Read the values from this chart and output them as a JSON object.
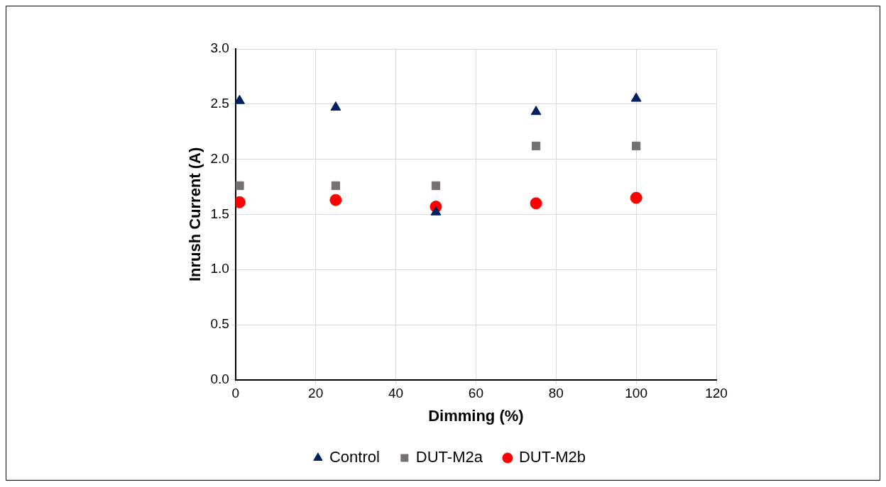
{
  "chart_data": {
    "type": "scatter",
    "xlabel": "Dimming (%)",
    "ylabel": "Inrush Current (A)",
    "x": [
      1,
      25,
      50,
      75,
      100
    ],
    "series": [
      {
        "name": "Control",
        "color": "#002060",
        "marker": "triangle",
        "values": [
          2.53,
          2.47,
          1.52,
          2.43,
          2.55
        ]
      },
      {
        "name": "DUT-M2a",
        "color": "#767171",
        "marker": "square",
        "values": [
          1.76,
          1.76,
          1.76,
          2.12,
          2.12
        ]
      },
      {
        "name": "DUT-M2b",
        "color": "#ff0000",
        "marker": "circle",
        "values": [
          1.61,
          1.63,
          1.57,
          1.6,
          1.65
        ]
      }
    ],
    "xlim": [
      0,
      120
    ],
    "xticks": [
      0,
      20,
      40,
      60,
      80,
      100,
      120
    ],
    "ylim": [
      0,
      3
    ],
    "yticks": [
      {
        "value": 0,
        "label": "0.0"
      },
      0.5,
      {
        "value": 1,
        "label": "1.0"
      },
      1.5,
      {
        "value": 2,
        "label": "2.0"
      },
      2.5,
      {
        "value": 3,
        "label": "3.0"
      }
    ],
    "grid": true,
    "legend": "bottom"
  }
}
